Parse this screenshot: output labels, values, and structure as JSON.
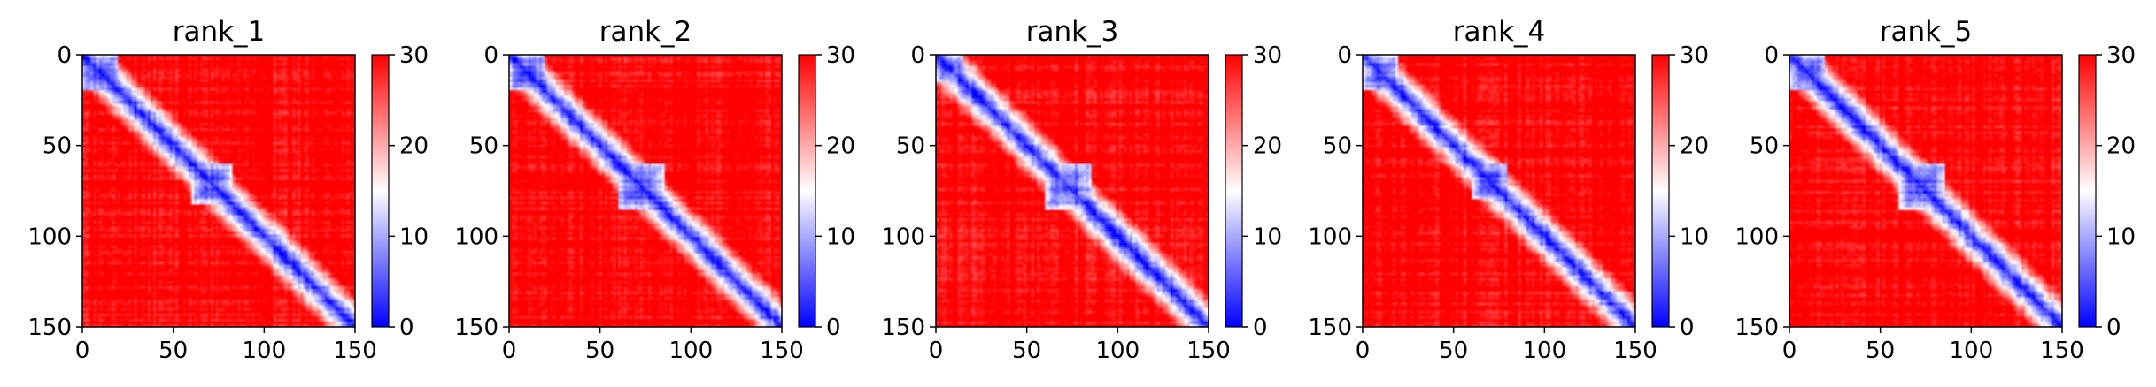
{
  "figure": {
    "panels": [
      "rank_1",
      "rank_2",
      "rank_3",
      "rank_4",
      "rank_5"
    ]
  },
  "chart_data": [
    {
      "type": "heatmap",
      "title": "rank_1",
      "xlim": [
        0,
        150
      ],
      "ylim": [
        150,
        0
      ],
      "xticks": [
        0,
        50,
        100,
        150
      ],
      "yticks": [
        0,
        50,
        100,
        150
      ],
      "colorbar": {
        "ticks": [
          0,
          10,
          20,
          30
        ],
        "range": [
          0,
          30
        ],
        "colormap": "bwr",
        "low": "#0000ff",
        "mid": "#ffffff",
        "high": "#ff0000"
      },
      "features": {
        "matrix_size": 150,
        "diagonal_value": 0,
        "background_value": 30,
        "domains": [
          [
            0,
            20
          ],
          [
            60,
            82
          ]
        ]
      }
    },
    {
      "type": "heatmap",
      "title": "rank_2",
      "xlim": [
        0,
        150
      ],
      "ylim": [
        150,
        0
      ],
      "xticks": [
        0,
        50,
        100,
        150
      ],
      "yticks": [
        0,
        50,
        100,
        150
      ],
      "colorbar": {
        "ticks": [
          0,
          10,
          20,
          30
        ],
        "range": [
          0,
          30
        ],
        "colormap": "bwr",
        "low": "#0000ff",
        "mid": "#ffffff",
        "high": "#ff0000"
      },
      "features": {
        "matrix_size": 150,
        "diagonal_value": 0,
        "background_value": 30,
        "domains": [
          [
            0,
            20
          ],
          [
            60,
            85
          ]
        ]
      }
    },
    {
      "type": "heatmap",
      "title": "rank_3",
      "xlim": [
        0,
        150
      ],
      "ylim": [
        150,
        0
      ],
      "xticks": [
        0,
        50,
        100,
        150
      ],
      "yticks": [
        0,
        50,
        100,
        150
      ],
      "colorbar": {
        "ticks": [
          0,
          10,
          20,
          30
        ],
        "range": [
          0,
          30
        ],
        "colormap": "bwr",
        "low": "#0000ff",
        "mid": "#ffffff",
        "high": "#ff0000"
      },
      "features": {
        "matrix_size": 150,
        "diagonal_value": 0,
        "background_value": 30,
        "domains": [
          [
            0,
            15
          ],
          [
            60,
            85
          ]
        ]
      }
    },
    {
      "type": "heatmap",
      "title": "rank_4",
      "xlim": [
        0,
        150
      ],
      "ylim": [
        150,
        0
      ],
      "xticks": [
        0,
        50,
        100,
        150
      ],
      "yticks": [
        0,
        50,
        100,
        150
      ],
      "colorbar": {
        "ticks": [
          0,
          10,
          20,
          30
        ],
        "range": [
          0,
          30
        ],
        "colormap": "bwr",
        "low": "#0000ff",
        "mid": "#ffffff",
        "high": "#ff0000"
      },
      "features": {
        "matrix_size": 150,
        "diagonal_value": 0,
        "background_value": 30,
        "domains": [
          [
            0,
            20
          ],
          [
            60,
            80
          ]
        ]
      }
    },
    {
      "type": "heatmap",
      "title": "rank_5",
      "xlim": [
        0,
        150
      ],
      "ylim": [
        150,
        0
      ],
      "xticks": [
        0,
        50,
        100,
        150
      ],
      "yticks": [
        0,
        50,
        100,
        150
      ],
      "colorbar": {
        "ticks": [
          0,
          10,
          20,
          30
        ],
        "range": [
          0,
          30
        ],
        "colormap": "bwr",
        "low": "#0000ff",
        "mid": "#ffffff",
        "high": "#ff0000"
      },
      "features": {
        "matrix_size": 150,
        "diagonal_value": 0,
        "background_value": 30,
        "domains": [
          [
            0,
            20
          ],
          [
            60,
            85
          ]
        ]
      }
    }
  ]
}
